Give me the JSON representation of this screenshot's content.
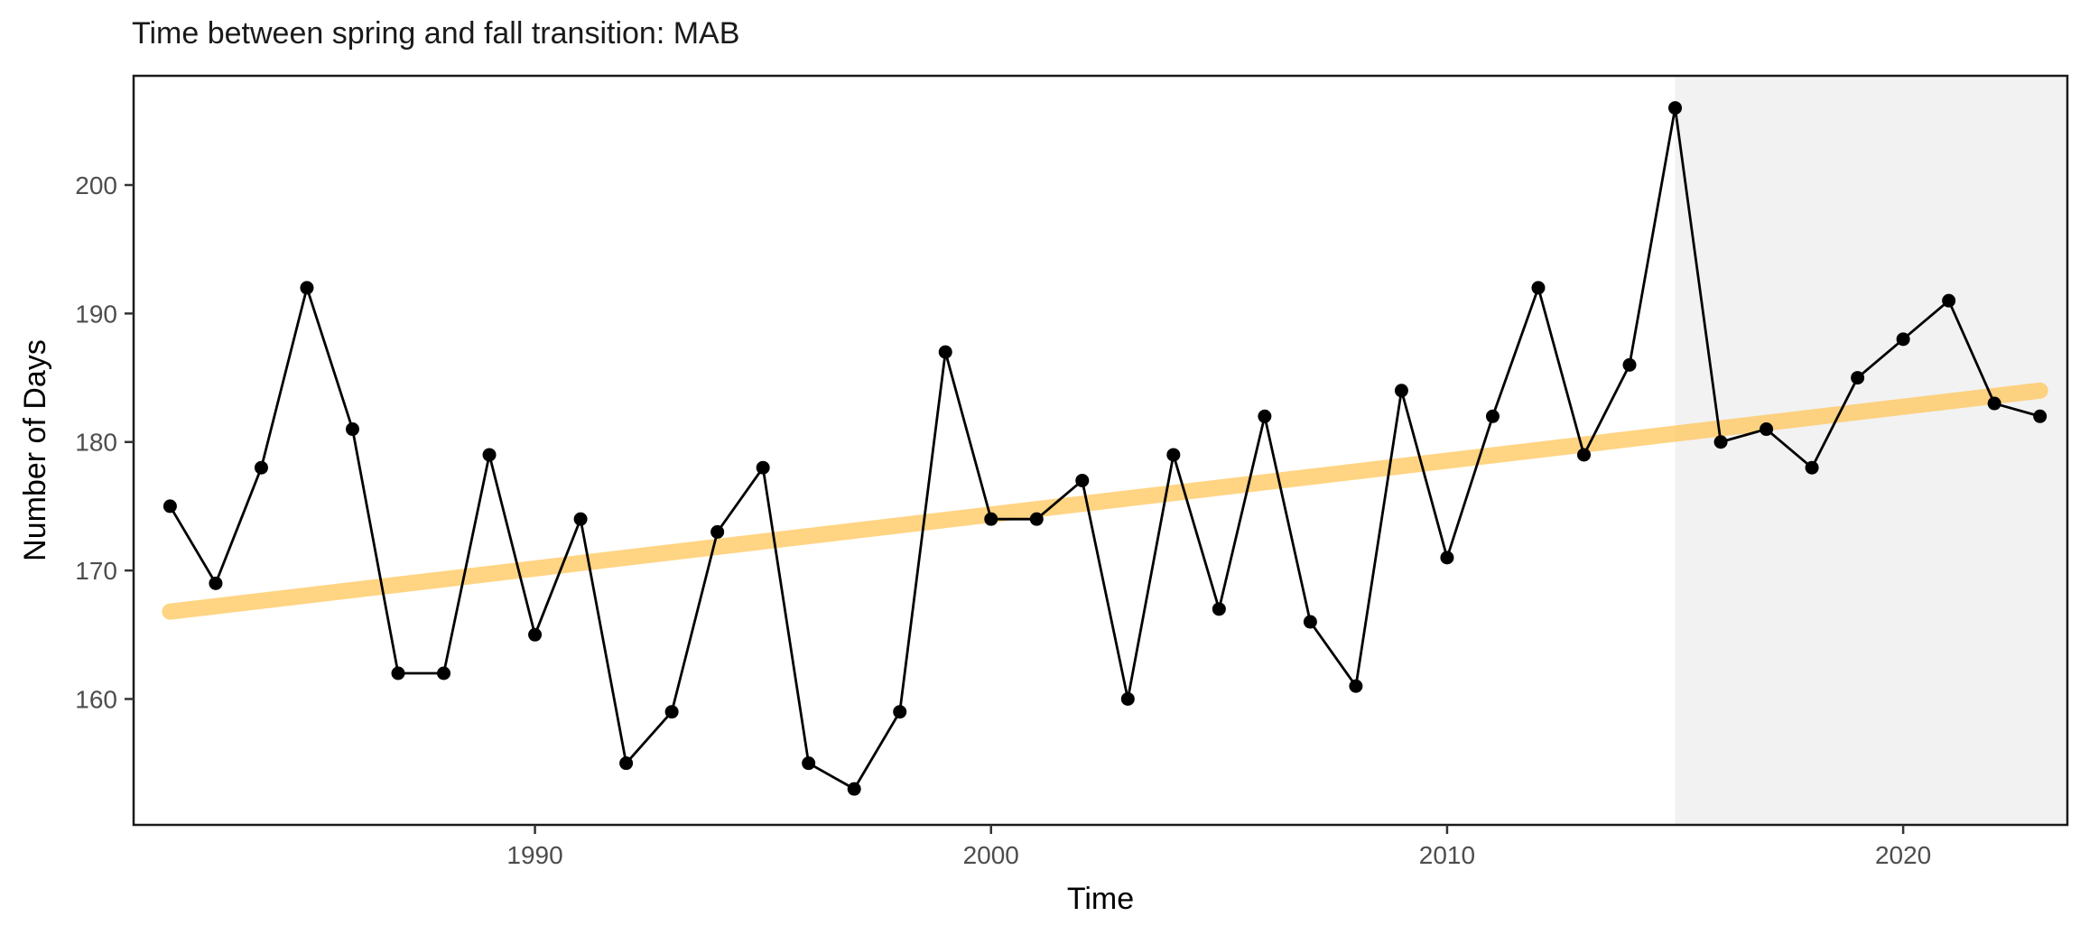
{
  "chart_data": {
    "type": "line",
    "title": "Time between spring and fall transition: MAB",
    "xlabel": "Time",
    "ylabel": "Number of Days",
    "xlim": [
      1981.2,
      2023.6
    ],
    "ylim": [
      150.2,
      208.5
    ],
    "x_ticks": [
      1990,
      2000,
      2010,
      2020
    ],
    "y_ticks": [
      160,
      170,
      180,
      190,
      200
    ],
    "grid": false,
    "legend": "none",
    "shaded_region": {
      "x_start": 2015,
      "x_end": 2023.6,
      "color": "#f2f2f2"
    },
    "series": [
      {
        "type": "line+points",
        "color": "#000000",
        "x": [
          1982,
          1983,
          1984,
          1985,
          1986,
          1987,
          1988,
          1989,
          1990,
          1991,
          1992,
          1993,
          1994,
          1995,
          1996,
          1997,
          1998,
          1999,
          2000,
          2001,
          2002,
          2003,
          2004,
          2005,
          2006,
          2007,
          2008,
          2009,
          2010,
          2011,
          2012,
          2013,
          2014,
          2015,
          2016,
          2017,
          2018,
          2019,
          2020,
          2021,
          2022,
          2023
        ],
        "y": [
          175,
          169,
          178,
          192,
          181,
          162,
          162,
          179,
          165,
          174,
          155,
          159,
          173,
          178,
          155,
          153,
          159,
          187,
          174,
          174,
          177,
          160,
          179,
          167,
          182,
          166,
          161,
          184,
          171,
          182,
          192,
          179,
          186,
          206,
          180,
          181,
          178,
          185,
          188,
          191,
          183,
          182
        ]
      },
      {
        "type": "trend",
        "color": "#ffc658",
        "opacity": 0.75,
        "x": [
          1982,
          2023
        ],
        "y": [
          166.8,
          184.0
        ]
      }
    ]
  }
}
